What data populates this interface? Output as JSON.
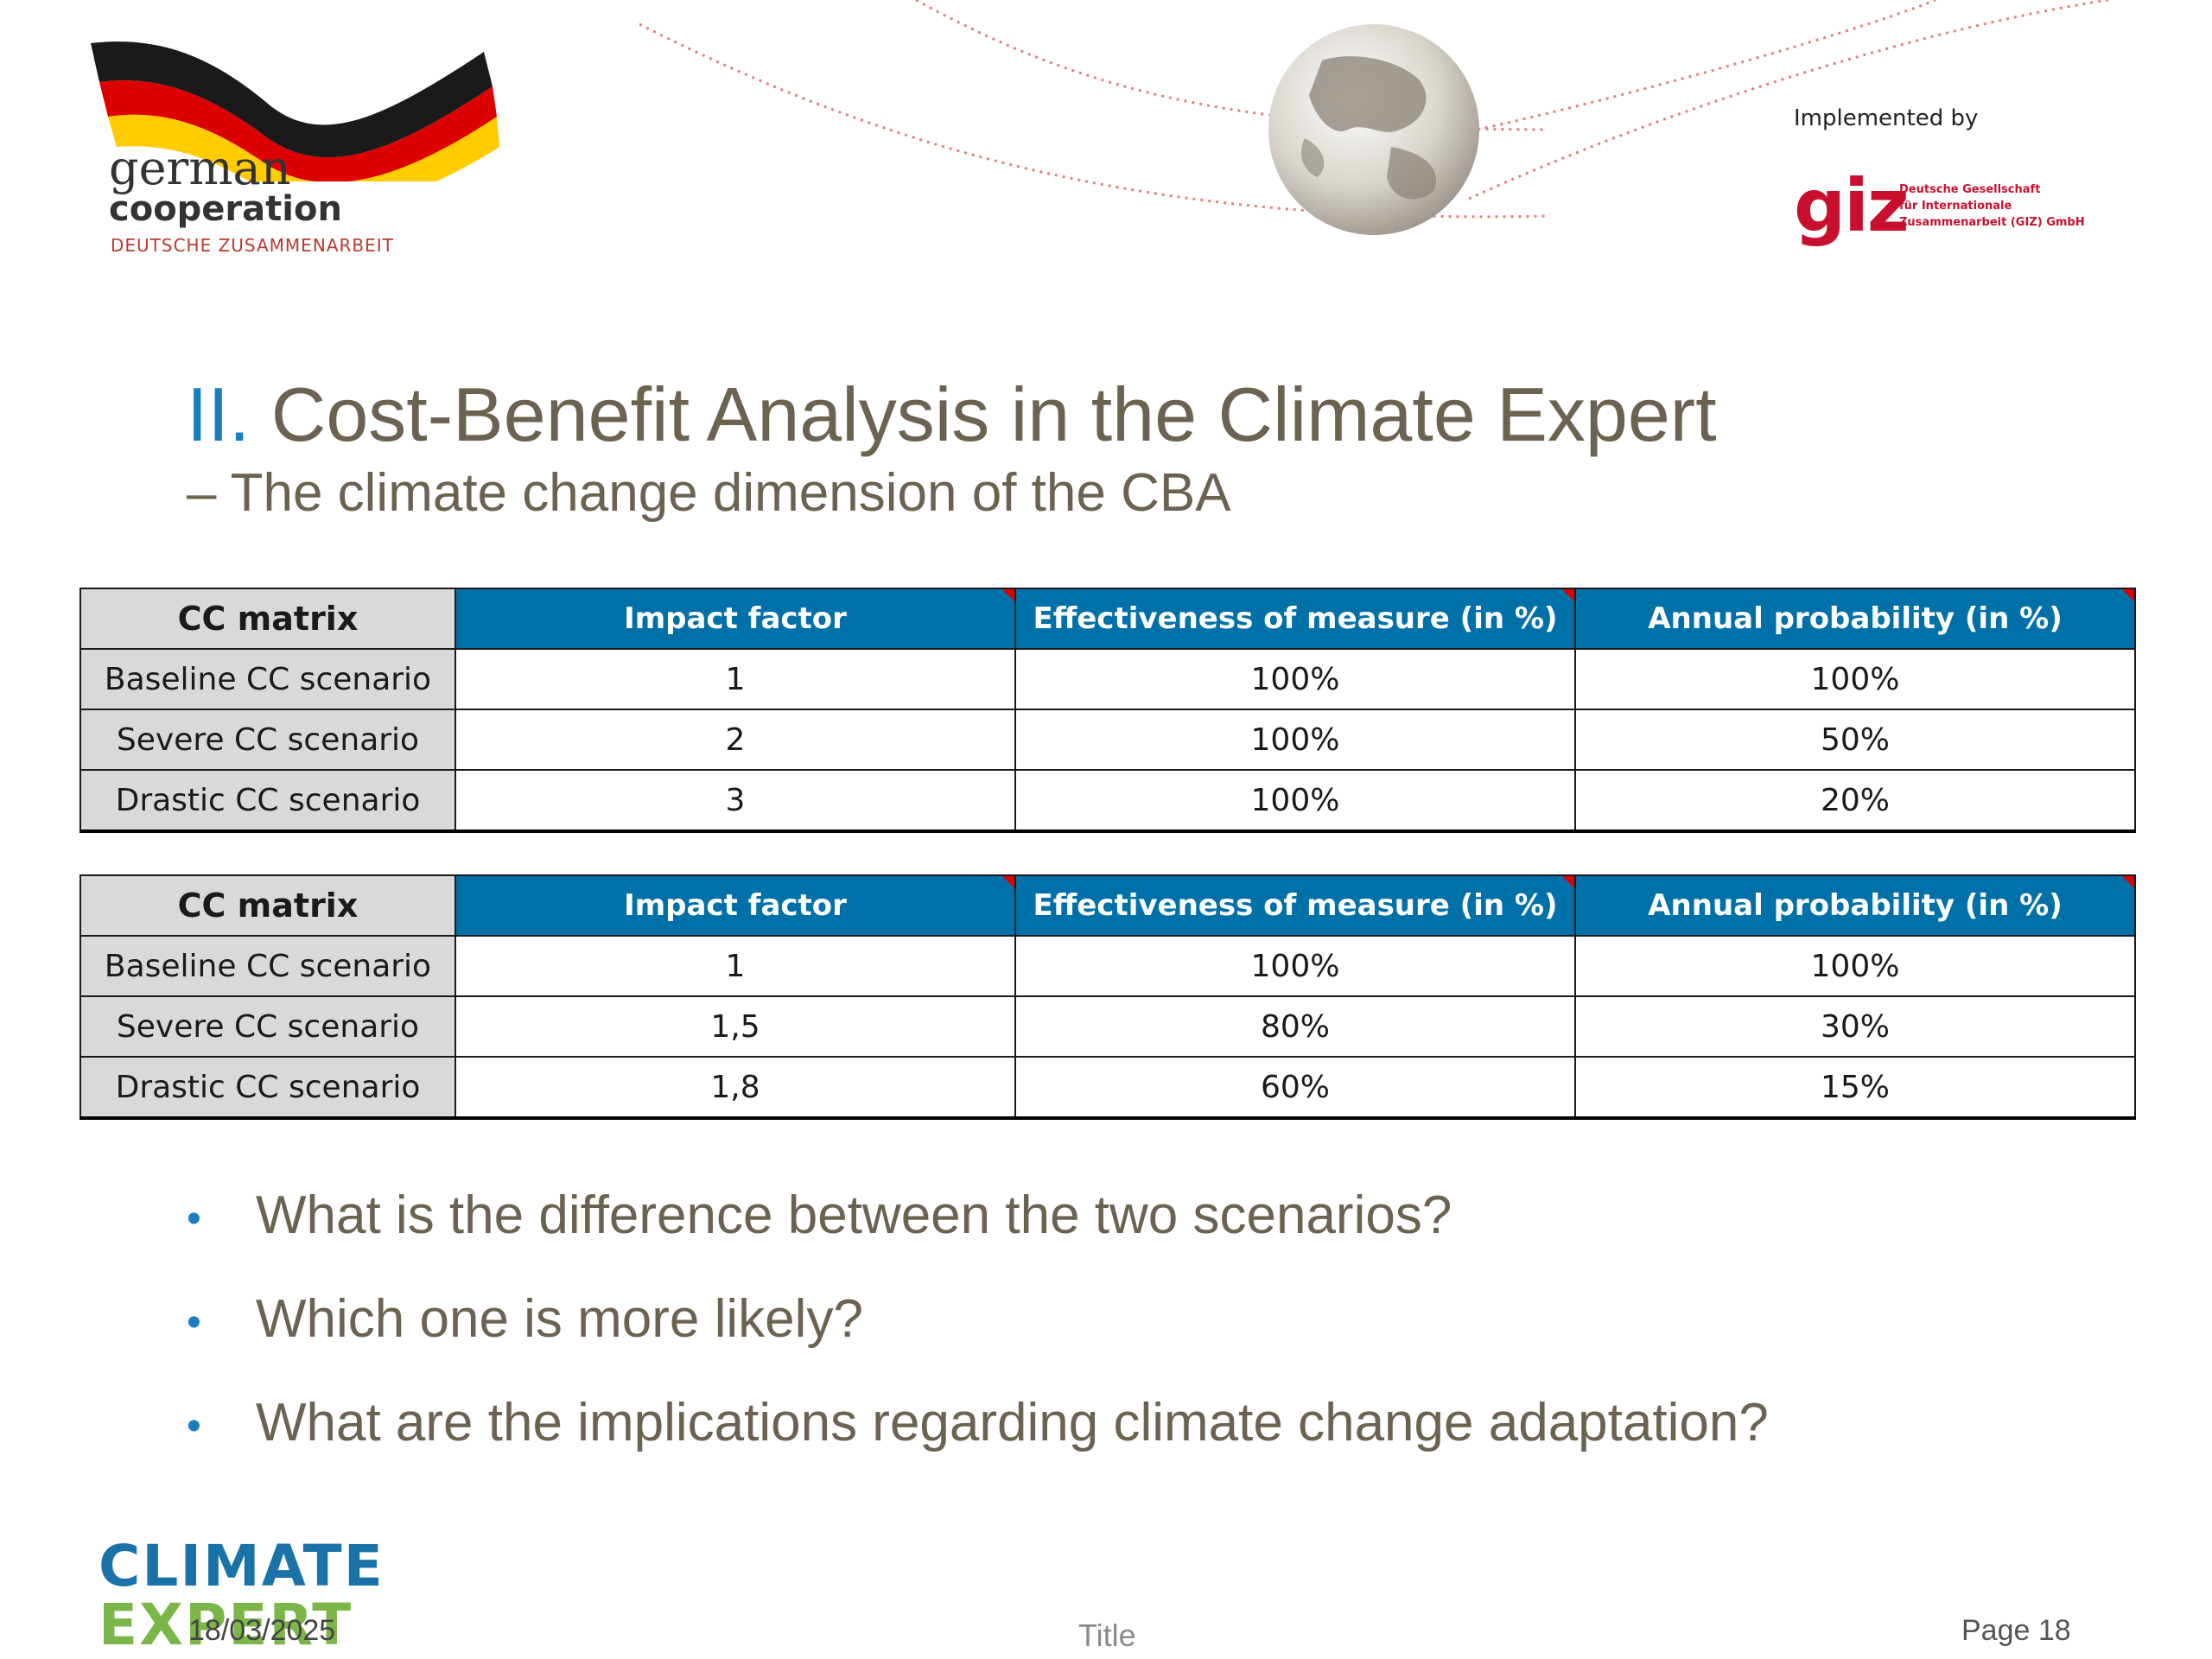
{
  "header": {
    "partner_logo": {
      "line1": "german",
      "line2": "cooperation",
      "line3": "DEUTSCHE ZUSAMMENARBEIT"
    },
    "implemented_by": "Implemented by",
    "giz_logo": {
      "mark": "giz",
      "full_name_lines": [
        "Deutsche Gesellschaft",
        "für Internationale",
        "Zusammenarbeit (GIZ) GmbH"
      ]
    }
  },
  "slide": {
    "title_number": "II.",
    "title_text": " Cost-Benefit Analysis in the Climate Expert",
    "subtitle": "– The climate change dimension of the CBA"
  },
  "tables": [
    {
      "headers": [
        "CC matrix",
        "Impact factor",
        "Effectiveness of measure (in %)",
        "Annual probability (in %)"
      ],
      "rows": [
        [
          "Baseline CC scenario",
          "1",
          "100%",
          "100%"
        ],
        [
          "Severe CC scenario",
          "2",
          "100%",
          "50%"
        ],
        [
          "Drastic CC scenario",
          "3",
          "100%",
          "20%"
        ]
      ]
    },
    {
      "headers": [
        "CC matrix",
        "Impact factor",
        "Effectiveness of measure (in %)",
        "Annual probability (in %)"
      ],
      "rows": [
        [
          "Baseline CC scenario",
          "1",
          "100%",
          "100%"
        ],
        [
          "Severe CC scenario",
          "1,5",
          "80%",
          "30%"
        ],
        [
          "Drastic CC scenario",
          "1,8",
          "60%",
          "15%"
        ]
      ]
    }
  ],
  "bullets": [
    "What is the difference between the two scenarios?",
    "Which one is more likely?",
    "What are the implications regarding climate change adaptation?"
  ],
  "bullet_symbol": "•",
  "footer": {
    "logo_line1": "CLIMATE",
    "logo_line2": "EXPERT",
    "date": "18/03/2025",
    "title": "Title",
    "page": "Page 18"
  },
  "colors": {
    "title_accent": "#1a7fc1",
    "text": "#6b6250",
    "table_header": "#0070a8",
    "label_bg": "#d9d9d9",
    "giz_red": "#c8102e"
  }
}
